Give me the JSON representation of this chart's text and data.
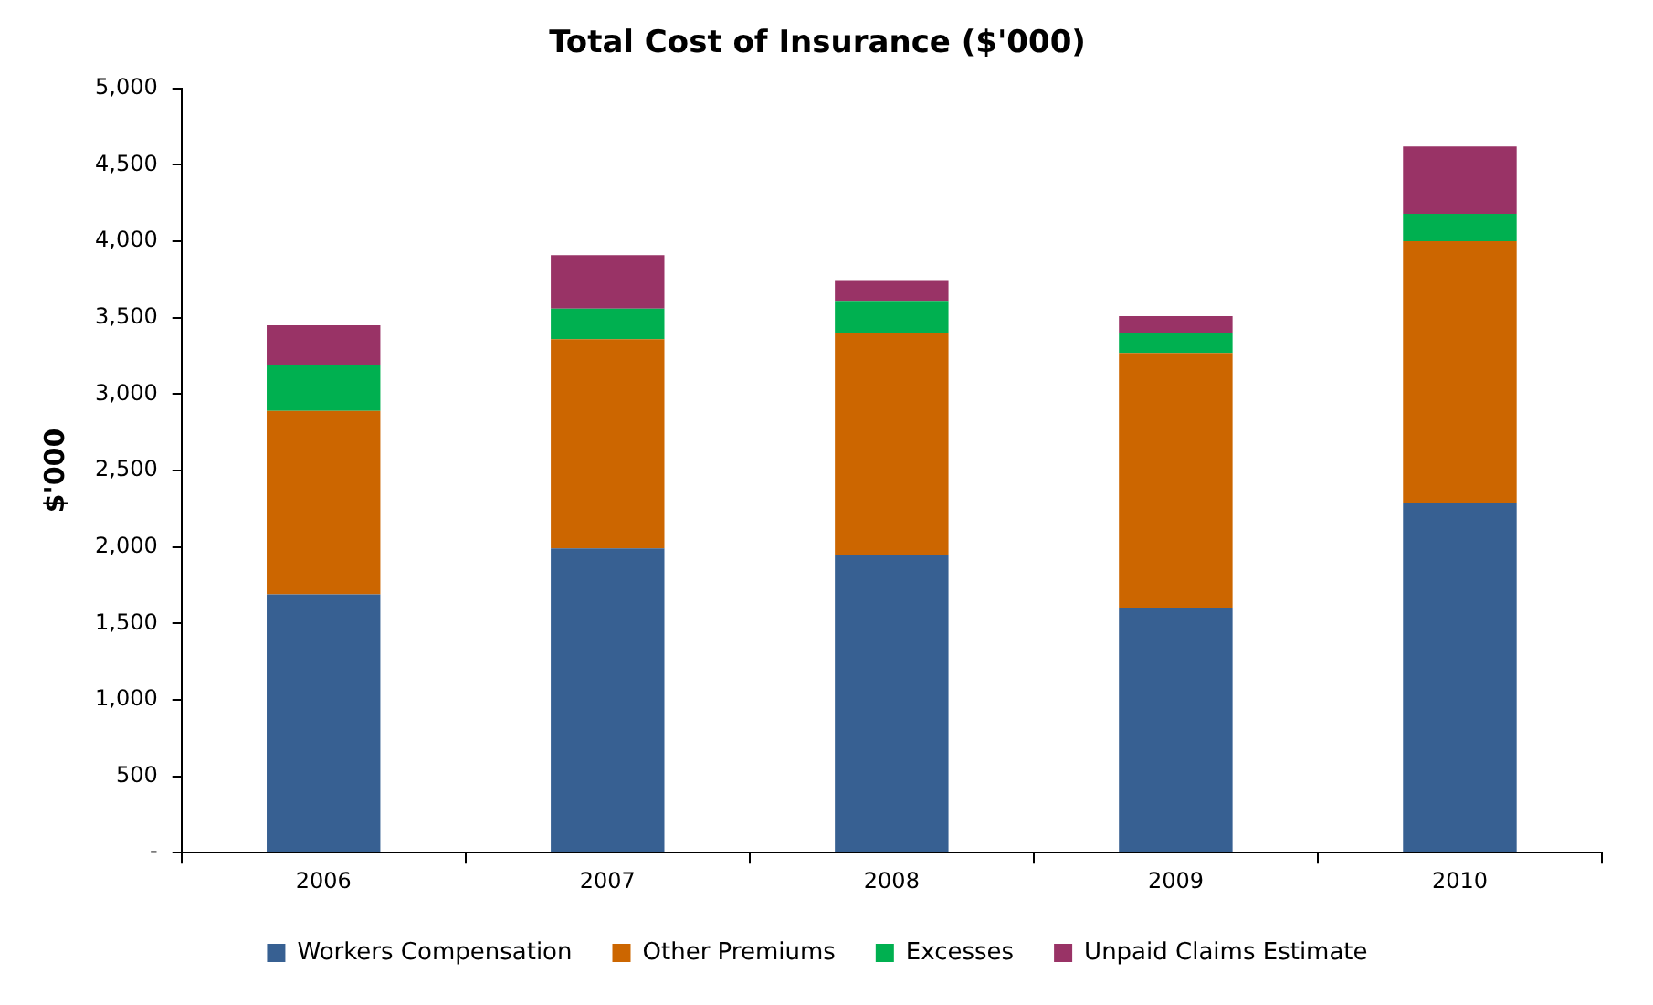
{
  "chart_data": {
    "type": "bar",
    "stacked": true,
    "title": "Total Cost of Insurance ($'000)",
    "ylabel": "$'000",
    "categories": [
      "2006",
      "2007",
      "2008",
      "2009",
      "2010"
    ],
    "series": [
      {
        "name": "Workers Compensation",
        "color": "#376092",
        "values": [
          1690,
          1990,
          1950,
          1600,
          2290
        ]
      },
      {
        "name": "Other Premiums",
        "color": "#cc6600",
        "values": [
          1200,
          1370,
          1450,
          1670,
          1710
        ]
      },
      {
        "name": "Excesses",
        "color": "#00b050",
        "values": [
          300,
          200,
          210,
          130,
          180
        ]
      },
      {
        "name": "Unpaid Claims Estimate",
        "color": "#993366",
        "values": [
          260,
          350,
          130,
          110,
          440
        ]
      }
    ],
    "ylim": [
      0,
      5000
    ],
    "yticks": [
      {
        "value": 0,
        "label": "-"
      },
      500,
      {
        "value": 1000,
        "label": "1,000"
      },
      {
        "value": 1500,
        "label": "1,500"
      },
      {
        "value": 2000,
        "label": "2,000"
      },
      {
        "value": 2500,
        "label": "2,500"
      },
      {
        "value": 3000,
        "label": "3,000"
      },
      {
        "value": 3500,
        "label": "3,500"
      },
      {
        "value": 4000,
        "label": "4,000"
      },
      {
        "value": 4500,
        "label": "4,500"
      },
      {
        "value": 5000,
        "label": "5,000"
      }
    ],
    "grid": false,
    "legend": "bottom"
  }
}
